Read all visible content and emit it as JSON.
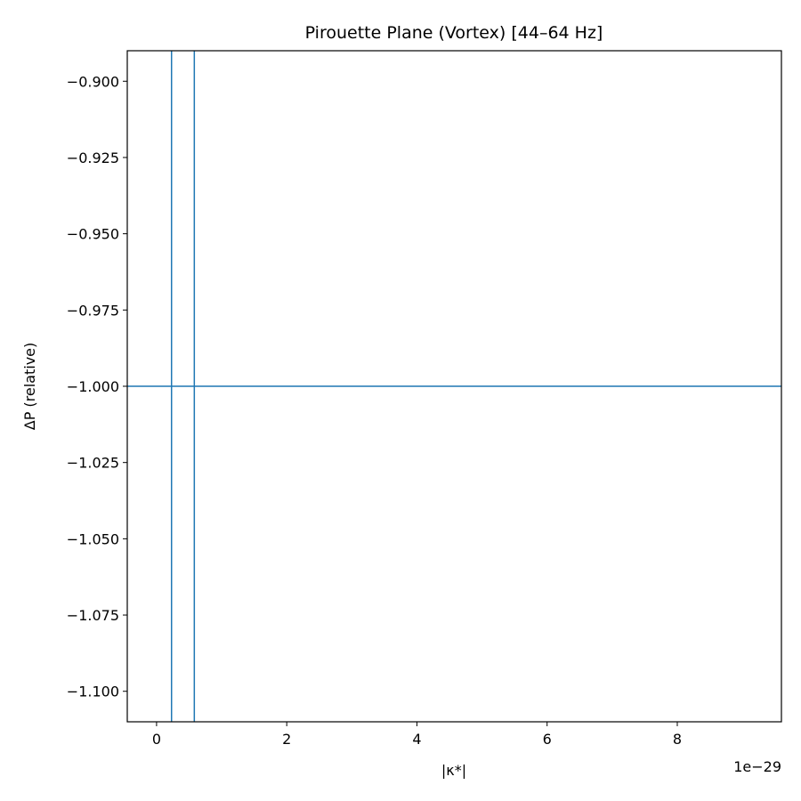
{
  "chart_data": {
    "type": "line",
    "title": "Pirouette Plane (Vortex)  [44–64 Hz]",
    "xlabel": "|κ*|",
    "ylabel": "ΔP (relative)",
    "x_offset_text": "1e−29",
    "xlim": [
      -0.45,
      9.6
    ],
    "ylim": [
      -1.11,
      -0.89
    ],
    "x_ticks": [
      0,
      2,
      4,
      6,
      8
    ],
    "x_tick_labels": [
      "0",
      "2",
      "4",
      "6",
      "8"
    ],
    "y_ticks": [
      -0.9,
      -0.925,
      -0.95,
      -0.975,
      -1.0,
      -1.025,
      -1.05,
      -1.075,
      -1.1
    ],
    "y_tick_labels": [
      "−0.900",
      "−0.925",
      "−0.950",
      "−0.975",
      "−1.000",
      "−1.025",
      "−1.050",
      "−1.075",
      "−1.100"
    ],
    "grid": false,
    "line_color": "#1f77b4",
    "vlines": [
      0.23,
      0.58
    ],
    "hlines": [
      -1.0
    ]
  }
}
